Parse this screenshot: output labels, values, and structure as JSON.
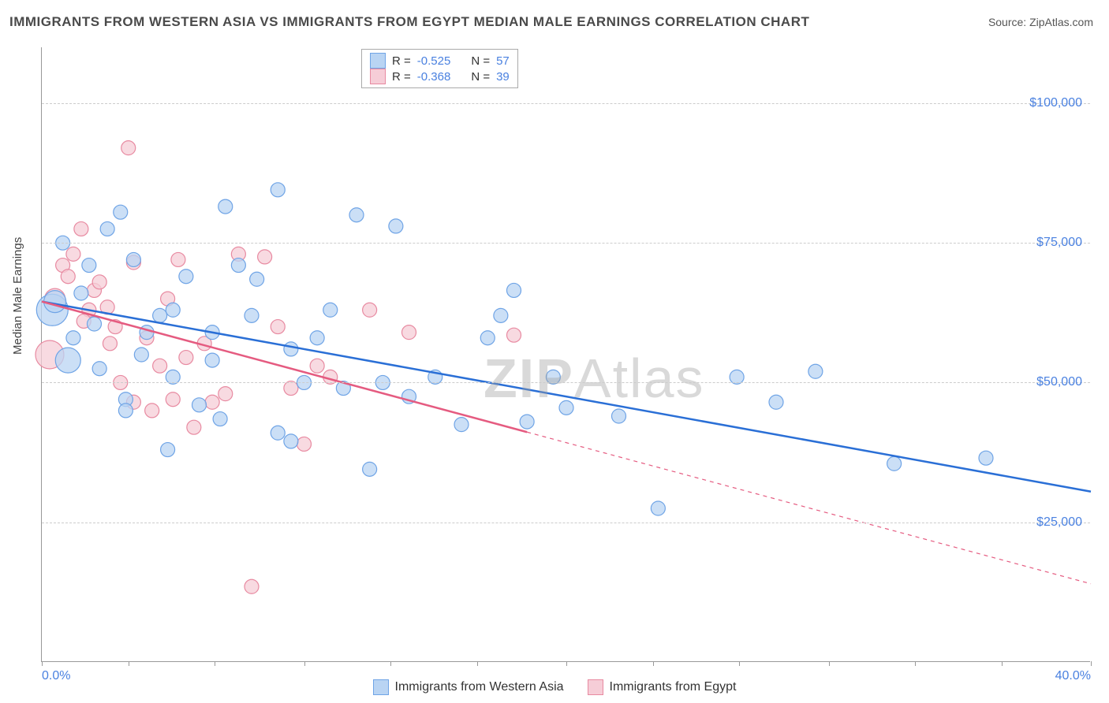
{
  "title": "IMMIGRANTS FROM WESTERN ASIA VS IMMIGRANTS FROM EGYPT MEDIAN MALE EARNINGS CORRELATION CHART",
  "source_label": "Source:",
  "source_value": "ZipAtlas.com",
  "watermark": "ZIPAtlas",
  "chart": {
    "type": "scatter",
    "ylabel": "Median Male Earnings",
    "xlim": [
      0,
      40
    ],
    "ylim": [
      0,
      110000
    ],
    "xtick_positions": [
      0,
      3.3,
      6.6,
      10,
      13.3,
      16.6,
      20,
      23.3,
      26.6,
      30,
      33.3,
      36.6,
      40
    ],
    "xtick_labels_left": "0.0%",
    "xtick_labels_right": "40.0%",
    "ytick_positions": [
      25000,
      50000,
      75000,
      100000
    ],
    "ytick_labels": [
      "$25,000",
      "$50,000",
      "$75,000",
      "$100,000"
    ],
    "grid_color": "#cccccc",
    "background_color": "#ffffff",
    "axis_color": "#999999"
  },
  "series": [
    {
      "name": "Immigrants from Western Asia",
      "color_fill": "#b9d4f3",
      "color_stroke": "#6fa4e6",
      "line_color": "#2a6fd6",
      "R": "-0.525",
      "N": "57",
      "marker_radius": 9,
      "regression": {
        "x1": 0,
        "y1": 64500,
        "x2": 40,
        "y2": 30500,
        "dashed_from_x": null
      },
      "points": [
        [
          0.4,
          63000,
          20
        ],
        [
          0.5,
          64500,
          14
        ],
        [
          1.0,
          54000,
          16
        ],
        [
          0.8,
          75000,
          9
        ],
        [
          1.5,
          66000,
          9
        ],
        [
          1.2,
          58000,
          9
        ],
        [
          1.8,
          71000,
          9
        ],
        [
          2.0,
          60500,
          9
        ],
        [
          2.5,
          77500,
          9
        ],
        [
          3.0,
          80500,
          9
        ],
        [
          3.5,
          72000,
          9
        ],
        [
          4.0,
          59000,
          9
        ],
        [
          4.5,
          62000,
          9
        ],
        [
          3.2,
          47000,
          9
        ],
        [
          3.2,
          45000,
          9
        ],
        [
          3.8,
          55000,
          9
        ],
        [
          4.8,
          38000,
          9
        ],
        [
          5.0,
          51000,
          9
        ],
        [
          5.0,
          63000,
          9
        ],
        [
          5.5,
          69000,
          9
        ],
        [
          6.0,
          46000,
          9
        ],
        [
          6.5,
          54000,
          9
        ],
        [
          6.5,
          59000,
          9
        ],
        [
          7.0,
          81500,
          9
        ],
        [
          7.5,
          71000,
          9
        ],
        [
          8.0,
          62000,
          9
        ],
        [
          8.2,
          68500,
          9
        ],
        [
          9.0,
          84500,
          9
        ],
        [
          9.5,
          56000,
          9
        ],
        [
          10.0,
          50000,
          9
        ],
        [
          10.5,
          58000,
          9
        ],
        [
          11.0,
          63000,
          9
        ],
        [
          9.0,
          41000,
          9
        ],
        [
          9.5,
          39500,
          9
        ],
        [
          11.5,
          49000,
          9
        ],
        [
          12.0,
          80000,
          9
        ],
        [
          12.5,
          34500,
          9
        ],
        [
          13.0,
          50000,
          9
        ],
        [
          13.5,
          78000,
          9
        ],
        [
          14.0,
          47500,
          9
        ],
        [
          15.0,
          51000,
          9
        ],
        [
          16.0,
          42500,
          9
        ],
        [
          17.0,
          58000,
          9
        ],
        [
          17.5,
          62000,
          9
        ],
        [
          18.0,
          66500,
          9
        ],
        [
          18.5,
          43000,
          9
        ],
        [
          19.5,
          51000,
          9
        ],
        [
          20.0,
          45500,
          9
        ],
        [
          22.0,
          44000,
          9
        ],
        [
          23.5,
          27500,
          9
        ],
        [
          26.5,
          51000,
          9
        ],
        [
          28.0,
          46500,
          9
        ],
        [
          29.5,
          52000,
          9
        ],
        [
          32.5,
          35500,
          9
        ],
        [
          36.0,
          36500,
          9
        ],
        [
          2.2,
          52500,
          9
        ],
        [
          6.8,
          43500,
          9
        ]
      ]
    },
    {
      "name": "Immigrants from Egypt",
      "color_fill": "#f6cdd7",
      "color_stroke": "#e88aa1",
      "line_color": "#e55b80",
      "R": "-0.368",
      "N": "39",
      "marker_radius": 9,
      "regression": {
        "x1": 0,
        "y1": 64500,
        "x2": 40,
        "y2": 14000,
        "dashed_from_x": 18.5
      },
      "points": [
        [
          0.3,
          55000,
          18
        ],
        [
          0.5,
          65000,
          13
        ],
        [
          0.8,
          71000,
          9
        ],
        [
          1.0,
          69000,
          9
        ],
        [
          1.2,
          73000,
          9
        ],
        [
          1.5,
          77500,
          9
        ],
        [
          1.8,
          63000,
          9
        ],
        [
          2.0,
          66500,
          9
        ],
        [
          2.2,
          68000,
          9
        ],
        [
          2.5,
          63500,
          9
        ],
        [
          2.8,
          60000,
          9
        ],
        [
          3.0,
          50000,
          9
        ],
        [
          3.3,
          92000,
          9
        ],
        [
          3.5,
          71500,
          9
        ],
        [
          3.5,
          46500,
          9
        ],
        [
          4.0,
          58000,
          9
        ],
        [
          4.2,
          45000,
          9
        ],
        [
          4.5,
          53000,
          9
        ],
        [
          5.0,
          47000,
          9
        ],
        [
          5.2,
          72000,
          9
        ],
        [
          5.5,
          54500,
          9
        ],
        [
          5.8,
          42000,
          9
        ],
        [
          6.2,
          57000,
          9
        ],
        [
          6.5,
          46500,
          9
        ],
        [
          7.0,
          48000,
          9
        ],
        [
          7.5,
          73000,
          9
        ],
        [
          8.0,
          13500,
          9
        ],
        [
          8.5,
          72500,
          9
        ],
        [
          9.0,
          60000,
          9
        ],
        [
          9.5,
          49000,
          9
        ],
        [
          10.0,
          39000,
          9
        ],
        [
          10.5,
          53000,
          9
        ],
        [
          11.0,
          51000,
          9
        ],
        [
          12.5,
          63000,
          9
        ],
        [
          14.0,
          59000,
          9
        ],
        [
          18.0,
          58500,
          9
        ],
        [
          4.8,
          65000,
          9
        ],
        [
          2.6,
          57000,
          9
        ],
        [
          1.6,
          61000,
          9
        ]
      ]
    }
  ],
  "legend_top": {
    "R_label": "R =",
    "N_label": "N ="
  }
}
